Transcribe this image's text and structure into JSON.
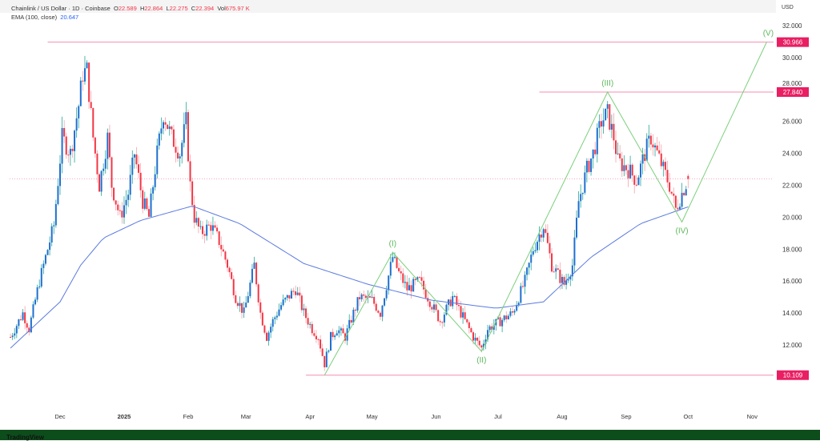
{
  "header": {
    "symbol": "Chainlink / US Dollar · 1D · Coinbase",
    "o_label": "O",
    "o": "22.589",
    "h_label": "H",
    "h": "22.864",
    "l_label": "L",
    "l": "22.275",
    "c_label": "C",
    "c": "22.394",
    "vol_label": "Vol",
    "vol": "675.97 K",
    "ema_label": "EMA (100, close)",
    "ema": "20.647",
    "currency": "USD"
  },
  "brand": "TradingView",
  "colors": {
    "up": "#1e6fd0",
    "up_wick": "#26a69a",
    "down": "#f23645",
    "ema": "#5b7be0",
    "wave": "#7ccf7c",
    "level": "#e91e63"
  },
  "chart_data": {
    "type": "candlestick",
    "title": "Chainlink / US Dollar · 1D · Coinbase",
    "ylim": [
      9,
      32.5
    ],
    "y_ticks": [
      "12.000",
      "14.000",
      "16.000",
      "18.000",
      "20.000",
      "22.000",
      "24.000",
      "26.000",
      "28.000",
      "30.000",
      "32.000"
    ],
    "x_ticks": [
      {
        "label": "Dec",
        "day": 0
      },
      {
        "label": "2025",
        "day": 31,
        "bold": true
      },
      {
        "label": "Feb",
        "day": 62
      },
      {
        "label": "Mar",
        "day": 90
      },
      {
        "label": "Apr",
        "day": 121
      },
      {
        "label": "May",
        "day": 151
      },
      {
        "label": "Jun",
        "day": 182
      },
      {
        "label": "Jul",
        "day": 212
      },
      {
        "label": "Aug",
        "day": 243
      },
      {
        "label": "Sep",
        "day": 274
      },
      {
        "label": "Oct",
        "day": 304
      },
      {
        "label": "Nov",
        "day": 335
      }
    ],
    "day_range": [
      -25,
      345
    ],
    "price_path_note": "approximate close path, [days since Dec 1 2024, price]",
    "price_path": [
      [
        -24,
        12.5
      ],
      [
        -18,
        14
      ],
      [
        -15,
        13
      ],
      [
        -10,
        16
      ],
      [
        -7,
        17.5
      ],
      [
        -3,
        19.5
      ],
      [
        1,
        25
      ],
      [
        5,
        24
      ],
      [
        9,
        27
      ],
      [
        11,
        29
      ],
      [
        13,
        29.2
      ],
      [
        16,
        25
      ],
      [
        19,
        22
      ],
      [
        23,
        25
      ],
      [
        25,
        22
      ],
      [
        29,
        20
      ],
      [
        33,
        21.5
      ],
      [
        36,
        24
      ],
      [
        40,
        21
      ],
      [
        43,
        20
      ],
      [
        47,
        24
      ],
      [
        50,
        26.5
      ],
      [
        54,
        25
      ],
      [
        58,
        24
      ],
      [
        61,
        26
      ],
      [
        63,
        22
      ],
      [
        65,
        20
      ],
      [
        68,
        19
      ],
      [
        73,
        19.5
      ],
      [
        77,
        18.5
      ],
      [
        81,
        17
      ],
      [
        85,
        15
      ],
      [
        89,
        14
      ],
      [
        94,
        17
      ],
      [
        97,
        14
      ],
      [
        100,
        12.5
      ],
      [
        103,
        13.5
      ],
      [
        107,
        14.5
      ],
      [
        114,
        15.5
      ],
      [
        118,
        14
      ],
      [
        122,
        13
      ],
      [
        125,
        12.5
      ],
      [
        128,
        10.8
      ],
      [
        131,
        12.5
      ],
      [
        134,
        13
      ],
      [
        138,
        12.5
      ],
      [
        142,
        14
      ],
      [
        145,
        15
      ],
      [
        151,
        14.8
      ],
      [
        155,
        14
      ],
      [
        161,
        17.5
      ],
      [
        164,
        16.5
      ],
      [
        168,
        15.5
      ],
      [
        174,
        16
      ],
      [
        178,
        15
      ],
      [
        184,
        13.5
      ],
      [
        190,
        15
      ],
      [
        194,
        14
      ],
      [
        200,
        12.5
      ],
      [
        204,
        11.8
      ],
      [
        207,
        13
      ],
      [
        213,
        13.5
      ],
      [
        219,
        14
      ],
      [
        225,
        16
      ],
      [
        229,
        18
      ],
      [
        234,
        19.5
      ],
      [
        238,
        17
      ],
      [
        244,
        15.8
      ],
      [
        248,
        17
      ],
      [
        251,
        21
      ],
      [
        255,
        23
      ],
      [
        258,
        24
      ],
      [
        262,
        26
      ],
      [
        265,
        26.5
      ],
      [
        268,
        25
      ],
      [
        270,
        23.5
      ],
      [
        275,
        23
      ],
      [
        279,
        22.3
      ],
      [
        283,
        24
      ],
      [
        286,
        25
      ],
      [
        289,
        24
      ],
      [
        292,
        23
      ],
      [
        295,
        22
      ],
      [
        298,
        20.5
      ],
      [
        301,
        21.5
      ],
      [
        304,
        22.4
      ]
    ],
    "ema_label": "EMA (100, close)",
    "ema_path": [
      [
        -24,
        11.8
      ],
      [
        0,
        14.7
      ],
      [
        10,
        17
      ],
      [
        21,
        18.7
      ],
      [
        39,
        19.8
      ],
      [
        64,
        20.7
      ],
      [
        87,
        19.6
      ],
      [
        118,
        17.1
      ],
      [
        149,
        15.8
      ],
      [
        180,
        14.8
      ],
      [
        211,
        14.3
      ],
      [
        234,
        14.7
      ],
      [
        257,
        17.5
      ],
      [
        281,
        19.6
      ],
      [
        304,
        20.65
      ]
    ],
    "current_price": 22.394,
    "levels": [
      {
        "label": "30.966",
        "value": 30.966,
        "from_day": -6
      },
      {
        "label": "27.840",
        "value": 27.84,
        "from_day": 232
      },
      {
        "label": "10.109",
        "value": 10.109,
        "from_day": 119
      }
    ],
    "wave_points": [
      {
        "label": "",
        "day": 128,
        "price": 10.109
      },
      {
        "label": "(I)",
        "day": 161,
        "price": 17.8
      },
      {
        "label": "(II)",
        "day": 204,
        "price": 11.6
      },
      {
        "label": "(III)",
        "day": 265,
        "price": 27.84
      },
      {
        "label": "(IV)",
        "day": 301,
        "price": 19.7
      },
      {
        "label": "(V)",
        "day": 342,
        "price": 30.966
      }
    ]
  }
}
